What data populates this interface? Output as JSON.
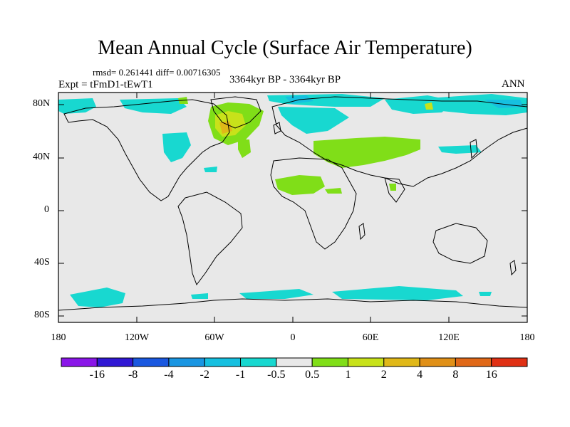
{
  "title": "Mean Annual Cycle (Surface Air Temperature)",
  "stats": "rmsd= 0.261441 diff= 0.00716305",
  "experiment": "Expt = tFmD1-tEwT1",
  "period": "3364kyr BP - 3364kyr BP",
  "season": "ANN",
  "lat_ticks": [
    "80N",
    "40N",
    "0",
    "40S",
    "80S"
  ],
  "lon_ticks": [
    "180",
    "120W",
    "60W",
    "0",
    "60E",
    "120E",
    "180"
  ],
  "colorbar": {
    "labels": [
      "-16",
      "-8",
      "-4",
      "-2",
      "-1",
      "-0.5",
      "0.5",
      "1",
      "2",
      "4",
      "8",
      "16"
    ],
    "colors": [
      "#8a16e8",
      "#3018d4",
      "#1a58e0",
      "#1a96e2",
      "#16c0e0",
      "#18d8d0",
      "#e8e8e8",
      "#80de18",
      "#c8e21a",
      "#e0b818",
      "#e09018",
      "#e06818",
      "#e03014"
    ]
  },
  "map_colors": {
    "background": "#e8e8e8",
    "cyan": "#18d8d0",
    "light_blue": "#16c0e0",
    "green": "#80de18",
    "yellow": "#c8e21a",
    "orange": "#e0b818"
  }
}
